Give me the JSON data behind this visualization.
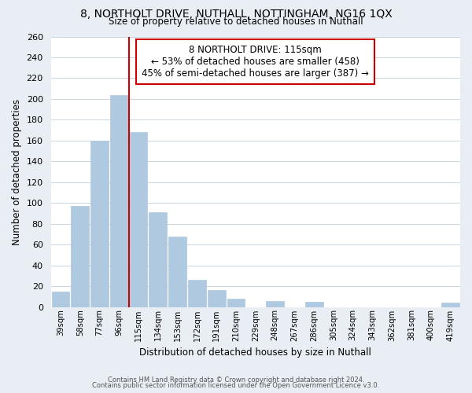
{
  "title_line1": "8, NORTHOLT DRIVE, NUTHALL, NOTTINGHAM, NG16 1QX",
  "title_line2": "Size of property relative to detached houses in Nuthall",
  "xlabel": "Distribution of detached houses by size in Nuthall",
  "ylabel": "Number of detached properties",
  "footer_line1": "Contains HM Land Registry data © Crown copyright and database right 2024.",
  "footer_line2": "Contains public sector information licensed under the Open Government Licence v3.0.",
  "bin_labels": [
    "39sqm",
    "58sqm",
    "77sqm",
    "96sqm",
    "115sqm",
    "134sqm",
    "153sqm",
    "172sqm",
    "191sqm",
    "210sqm",
    "229sqm",
    "248sqm",
    "267sqm",
    "286sqm",
    "305sqm",
    "324sqm",
    "343sqm",
    "362sqm",
    "381sqm",
    "400sqm",
    "419sqm"
  ],
  "bar_heights": [
    15,
    97,
    160,
    204,
    168,
    91,
    68,
    26,
    16,
    8,
    0,
    6,
    0,
    5,
    0,
    0,
    0,
    0,
    0,
    0,
    4
  ],
  "bar_color": "#aec9e0",
  "highlight_line_color": "#cc0000",
  "highlight_line_index": 4,
  "annotation_title": "8 NORTHOLT DRIVE: 115sqm",
  "annotation_line1": "← 53% of detached houses are smaller (458)",
  "annotation_line2": "45% of semi-detached houses are larger (387) →",
  "annotation_box_facecolor": "#ffffff",
  "annotation_box_edgecolor": "#cc0000",
  "ylim": [
    0,
    260
  ],
  "yticks": [
    0,
    20,
    40,
    60,
    80,
    100,
    120,
    140,
    160,
    180,
    200,
    220,
    240,
    260
  ],
  "background_color": "#e8eef4",
  "plot_background_color": "#ffffff",
  "grid_color": "#c8d4de"
}
